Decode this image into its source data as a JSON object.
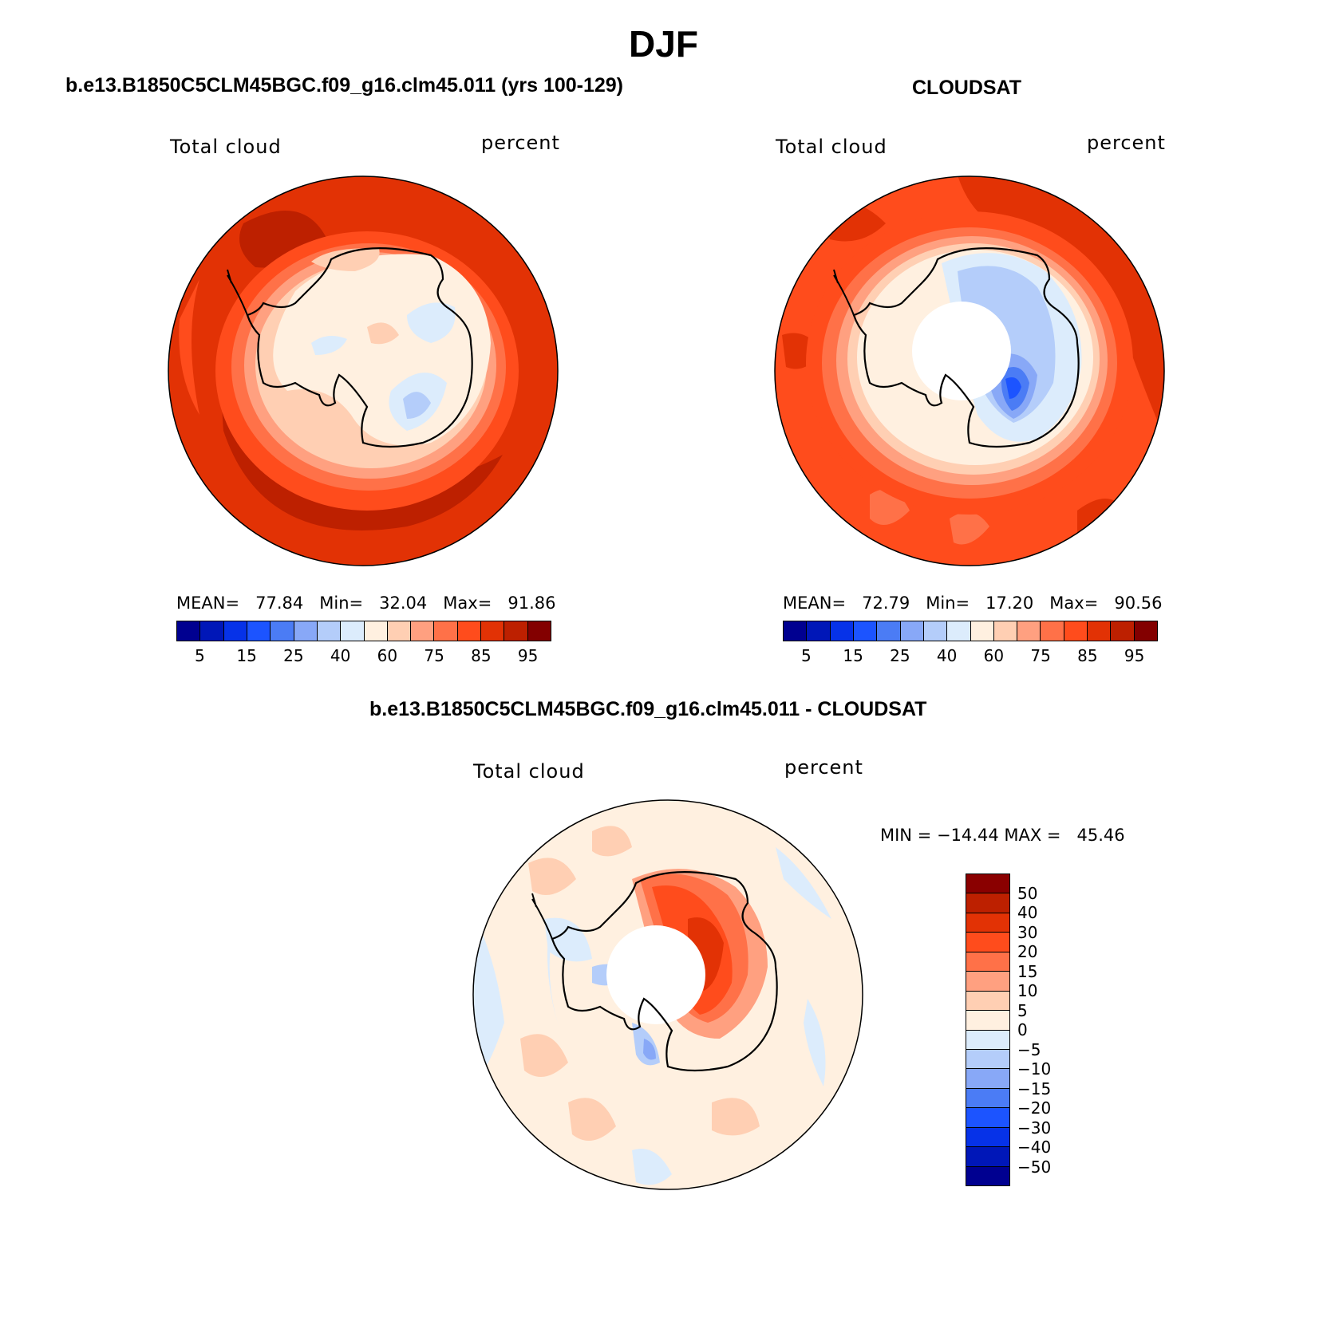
{
  "title": "DJF",
  "colors": {
    "abs_scale": [
      "#000090",
      "#0017b8",
      "#0632e8",
      "#1c54ff",
      "#4b7cf5",
      "#88a8f7",
      "#b4cdfa",
      "#dcecfc",
      "#fff0e0",
      "#ffcfb3",
      "#ffa080",
      "#ff7148",
      "#ff4c1c",
      "#e23205",
      "#bd2000",
      "#830000"
    ],
    "diff_scale": [
      "#8a0000",
      "#bd2000",
      "#e23205",
      "#ff4c1c",
      "#ff7148",
      "#ffa080",
      "#ffcfb3",
      "#fff0e0",
      "#dcecfc",
      "#b4cdfa",
      "#88a8f7",
      "#4b7cf5",
      "#1c54ff",
      "#0632e8",
      "#0017b8",
      "#000090"
    ]
  },
  "panels": {
    "model": {
      "title": "b.e13.B1850C5CLM45BGC.f09_g16.clm45.011 (yrs 100-129)",
      "left_label": "Total cloud",
      "right_label": "percent",
      "mean_label": "MEAN=",
      "mean": "77.84",
      "min_label": "Min=",
      "min": "32.04",
      "max_label": "Max=",
      "max": "91.86",
      "ticks": [
        "5",
        "15",
        "25",
        "40",
        "60",
        "75",
        "85",
        "95"
      ]
    },
    "obs": {
      "title": "CLOUDSAT",
      "left_label": "Total cloud",
      "right_label": "percent",
      "mean_label": "MEAN=",
      "mean": "72.79",
      "min_label": "Min=",
      "min": "17.20",
      "max_label": "Max=",
      "max": "90.56",
      "ticks": [
        "5",
        "15",
        "25",
        "40",
        "60",
        "75",
        "85",
        "95"
      ]
    },
    "diff": {
      "title": "b.e13.B1850C5CLM45BGC.f09_g16.clm45.011 - CLOUDSAT",
      "left_label": "Total cloud",
      "right_label": "percent",
      "minmax": "MIN = −14.44 MAX =   45.46",
      "ticks": [
        "50",
        "40",
        "30",
        "20",
        "15",
        "10",
        "5",
        "0",
        "−5",
        "−10",
        "−15",
        "−20",
        "−30",
        "−40",
        "−50"
      ]
    }
  }
}
